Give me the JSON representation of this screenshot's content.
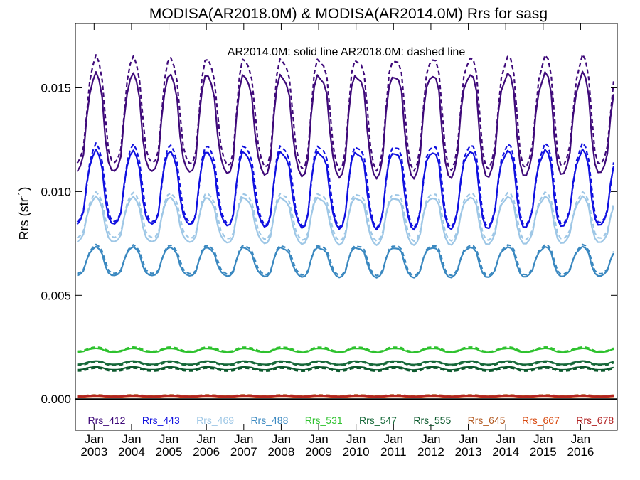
{
  "chart_data": {
    "type": "line",
    "title": "MODISA(AR2018.0M) & MODISA(AR2014.0M)  Rrs for sasg",
    "annotation": "AR2014.0M: solid line   AR2018.0M: dashed line",
    "ylabel": "Rrs (str",
    "ylabel_sup": "-1",
    "ylabel_end": ")",
    "ylim": [
      -0.0015,
      0.0181
    ],
    "xlim": [
      2002.5,
      2016.98
    ],
    "yticks": [
      "0.000",
      "0.005",
      "0.010",
      "0.015"
    ],
    "ytick_values": [
      0,
      0.005,
      0.01,
      0.015
    ],
    "xticks": [
      {
        "value": 2003,
        "month": "Jan",
        "year": "2003"
      },
      {
        "value": 2004,
        "month": "Jan",
        "year": "2004"
      },
      {
        "value": 2005,
        "month": "Jan",
        "year": "2005"
      },
      {
        "value": 2006,
        "month": "Jan",
        "year": "2006"
      },
      {
        "value": 2007,
        "month": "Jan",
        "year": "2007"
      },
      {
        "value": 2008,
        "month": "Jan",
        "year": "2008"
      },
      {
        "value": 2009,
        "month": "Jan",
        "year": "2009"
      },
      {
        "value": 2010,
        "month": "Jan",
        "year": "2010"
      },
      {
        "value": 2011,
        "month": "Jan",
        "year": "2011"
      },
      {
        "value": 2012,
        "month": "Jan",
        "year": "2012"
      },
      {
        "value": 2013,
        "month": "Jan",
        "year": "2013"
      },
      {
        "value": 2014,
        "month": "Jan",
        "year": "2014"
      },
      {
        "value": 2015,
        "month": "Jan",
        "year": "2015"
      },
      {
        "value": 2016,
        "month": "Jan",
        "year": "2016"
      }
    ],
    "reference_line_y": 0,
    "legend_placement": "bottom-inside",
    "series": [
      {
        "name": "Rrs_412",
        "color": "#3f0a7a",
        "ar2014": {
          "base": 0.0132,
          "amp": 0.0024
        },
        "ar2018": {
          "base": 0.0138,
          "amp": 0.0026
        }
      },
      {
        "name": "Rrs_443",
        "color": "#1010e0",
        "ar2014": {
          "base": 0.0101,
          "amp": 0.0018
        },
        "ar2018": {
          "base": 0.0103,
          "amp": 0.0019
        }
      },
      {
        "name": "Rrs_469",
        "color": "#9ec7e6",
        "ar2014": {
          "base": 0.0086,
          "amp": 0.0011
        },
        "ar2018": {
          "base": 0.0088,
          "amp": 0.0011
        }
      },
      {
        "name": "Rrs_488",
        "color": "#3a88c0",
        "ar2014": {
          "base": 0.0066,
          "amp": 0.0007
        },
        "ar2018": {
          "base": 0.0067,
          "amp": 0.0007
        }
      },
      {
        "name": "Rrs_531",
        "color": "#2ec22e",
        "ar2014": {
          "base": 0.00235,
          "amp": 9e-05
        },
        "ar2018": {
          "base": 0.0024,
          "amp": 0.0001
        }
      },
      {
        "name": "Rrs_547",
        "color": "#17693a",
        "ar2014": {
          "base": 0.00175,
          "amp": 8e-05
        },
        "ar2018": {
          "base": 0.0017,
          "amp": 8e-05
        }
      },
      {
        "name": "Rrs_555",
        "color": "#0d5a2e",
        "ar2014": {
          "base": 0.00148,
          "amp": 7e-05
        },
        "ar2018": {
          "base": 0.00142,
          "amp": 7e-05
        }
      },
      {
        "name": "Rrs_645",
        "color": "#b35a22",
        "ar2014": {
          "base": 0.00016,
          "amp": 2e-05
        },
        "ar2018": {
          "base": 0.00018,
          "amp": 2e-05
        }
      },
      {
        "name": "Rrs_667",
        "color": "#d84a10",
        "ar2014": {
          "base": 0.00012,
          "amp": 2e-05
        },
        "ar2018": {
          "base": 0.00014,
          "amp": 2e-05
        }
      },
      {
        "name": "Rrs_678",
        "color": "#b22222",
        "ar2014": {
          "base": 0.00014,
          "amp": 2e-05
        },
        "ar2018": {
          "base": 0.00015,
          "amp": 2e-05
        }
      }
    ]
  }
}
